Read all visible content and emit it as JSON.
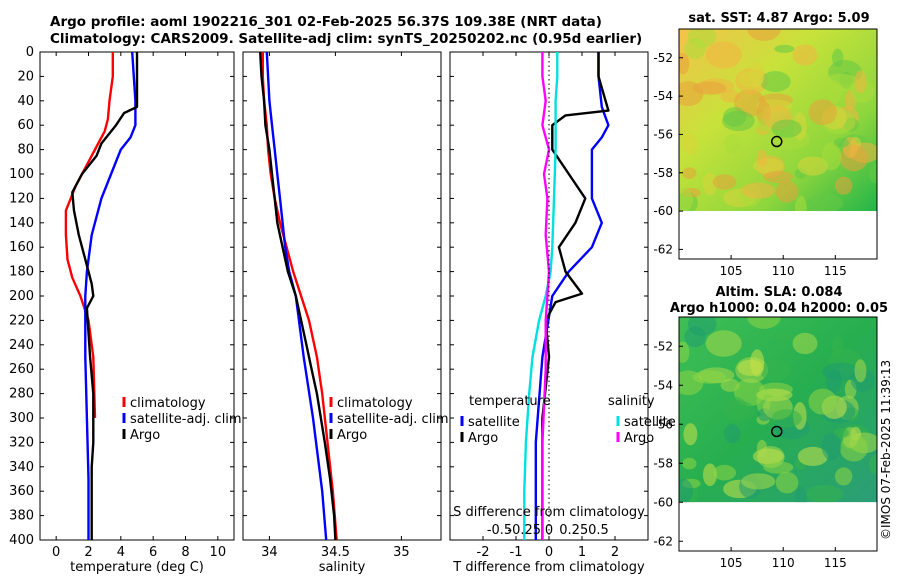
{
  "titles": {
    "line1": "Argo profile: aoml 1902216_301 02-Feb-2025 56.37S 109.38E (NRT data)",
    "line2": "Climatology: CARS2009. Satellite-adj clim: synTS_20250202.nc (0.95d earlier)"
  },
  "chart_data": [
    {
      "type": "line",
      "id": "temperature",
      "xlabel": "temperature (deg C)",
      "ylabel": "",
      "xlim": [
        -1,
        11
      ],
      "ylim": [
        0,
        400
      ],
      "y_reversed": true,
      "xticks": [
        0,
        2,
        4,
        6,
        8,
        10
      ],
      "yticks": [
        0,
        20,
        40,
        60,
        80,
        100,
        120,
        140,
        160,
        180,
        200,
        220,
        240,
        260,
        280,
        300,
        320,
        340,
        360,
        380,
        400
      ],
      "legend": [
        "climatology",
        "satellite-adj. clim",
        "Argo"
      ],
      "legend_position": "lower-right",
      "series": [
        {
          "name": "climatology",
          "color": "#ff0000",
          "x": [
            3.5,
            3.5,
            3.3,
            3.2,
            3.0,
            2.6,
            2.0,
            1.2,
            0.6,
            0.6,
            0.7,
            1.0,
            1.5,
            2.0,
            2.3,
            2.4
          ],
          "y": [
            0,
            20,
            40,
            55,
            65,
            75,
            90,
            110,
            130,
            150,
            170,
            185,
            200,
            220,
            250,
            300
          ]
        },
        {
          "name": "satellite-adj. clim",
          "color": "#0000ff",
          "x": [
            4.7,
            4.8,
            4.9,
            4.9,
            4.6,
            4.0,
            3.4,
            2.8,
            2.2,
            1.9,
            1.8,
            1.8,
            1.9,
            2.0,
            2.0
          ],
          "y": [
            0,
            20,
            40,
            60,
            70,
            80,
            100,
            120,
            150,
            180,
            200,
            250,
            300,
            350,
            400
          ]
        },
        {
          "name": "Argo",
          "color": "#000000",
          "x": [
            5.0,
            5.0,
            5.0,
            4.2,
            3.7,
            2.8,
            2.5,
            1.6,
            1.0,
            1.1,
            1.4,
            1.8,
            2.2,
            2.3,
            1.9,
            2.0,
            2.1,
            2.3,
            2.3,
            2.2,
            2.2,
            2.2
          ],
          "y": [
            0,
            20,
            45,
            50,
            60,
            75,
            85,
            100,
            115,
            130,
            150,
            170,
            190,
            200,
            210,
            230,
            250,
            280,
            320,
            340,
            370,
            400
          ]
        }
      ]
    },
    {
      "type": "line",
      "id": "salinity",
      "xlabel": "salinity",
      "ylabel": "",
      "xlim": [
        33.8,
        35.3
      ],
      "ylim": [
        0,
        400
      ],
      "y_reversed": true,
      "xticks": [
        34,
        34.5,
        35
      ],
      "xtick_labels": [
        "34",
        "34.5",
        "35"
      ],
      "legend": [
        "climatology",
        "satellite-adj. clim",
        "Argo"
      ],
      "legend_position": "lower-right",
      "series": [
        {
          "name": "climatology",
          "color": "#ff0000",
          "x": [
            33.95,
            33.95,
            33.96,
            33.98,
            33.99,
            34.01,
            34.04,
            34.08,
            34.13,
            34.18,
            34.24,
            34.3,
            34.36,
            34.4,
            34.44,
            34.48,
            34.51
          ],
          "y": [
            0,
            20,
            40,
            60,
            80,
            100,
            120,
            140,
            160,
            180,
            200,
            220,
            250,
            280,
            320,
            360,
            400
          ]
        },
        {
          "name": "satellite-adj. clim",
          "color": "#0000ff",
          "x": [
            33.98,
            33.99,
            34.0,
            34.02,
            34.04,
            34.06,
            34.08,
            34.1,
            34.12,
            34.15,
            34.2,
            34.26,
            34.33,
            34.4,
            34.43
          ],
          "y": [
            0,
            20,
            40,
            60,
            80,
            100,
            120,
            140,
            160,
            180,
            200,
            250,
            300,
            360,
            400
          ]
        },
        {
          "name": "Argo",
          "color": "#000000",
          "x": [
            33.93,
            33.94,
            33.96,
            33.97,
            34.0,
            34.02,
            34.04,
            34.06,
            34.1,
            34.14,
            34.2,
            34.24,
            34.28,
            34.32,
            34.36,
            34.42,
            34.46,
            34.49,
            34.5
          ],
          "y": [
            0,
            20,
            40,
            60,
            80,
            100,
            120,
            140,
            160,
            180,
            200,
            220,
            240,
            260,
            280,
            320,
            350,
            380,
            400
          ]
        }
      ]
    },
    {
      "type": "line",
      "id": "difference",
      "xlabel": "T difference from climatology",
      "xlabel_top": "S difference from climatology",
      "xlim": [
        -3,
        3
      ],
      "ylim": [
        0,
        400
      ],
      "y_reversed": true,
      "xticks": [
        -2,
        -1,
        0,
        1,
        2
      ],
      "top_ticks": [
        -0.5,
        -0.25,
        0,
        0.25,
        0.5
      ],
      "top_tick_labels": [
        "-0.5",
        "-0.25",
        "0",
        "0.25",
        "0.5"
      ],
      "legend_groups": [
        {
          "title": "temperature",
          "entries": [
            "satellite",
            "Argo"
          ]
        },
        {
          "title": "salinity",
          "entries": [
            "satellite",
            "Argo"
          ]
        }
      ],
      "series": [
        {
          "name": "temperature satellite",
          "color": "#0000ff",
          "x": [
            1.5,
            1.5,
            1.6,
            1.8,
            1.6,
            1.3,
            1.3,
            1.3,
            1.6,
            1.3,
            0.6,
            0.1,
            -0.2,
            -0.4,
            -0.4
          ],
          "y": [
            0,
            20,
            45,
            60,
            70,
            80,
            100,
            120,
            140,
            160,
            180,
            200,
            250,
            320,
            400
          ]
        },
        {
          "name": "temperature Argo",
          "color": "#000000",
          "x": [
            1.5,
            1.5,
            1.8,
            0.5,
            0.1,
            0.1,
            0.6,
            1.1,
            0.8,
            0.3,
            0.5,
            1.0,
            0.2,
            -0.1,
            0.0,
            -0.2,
            -0.2,
            -0.2
          ],
          "y": [
            0,
            20,
            48,
            52,
            60,
            80,
            100,
            120,
            140,
            160,
            180,
            198,
            205,
            220,
            250,
            300,
            350,
            400
          ]
        },
        {
          "name": "salinity satellite",
          "color": "#00e0e0",
          "x": [
            0.25,
            0.25,
            0.2,
            0.2,
            0.15,
            0.1,
            0.05,
            -0.1,
            -0.3,
            -0.5,
            -0.6,
            -0.7,
            -0.75,
            -0.75
          ],
          "y": [
            0,
            20,
            40,
            80,
            120,
            160,
            180,
            200,
            220,
            250,
            280,
            320,
            360,
            400
          ]
        },
        {
          "name": "salinity Argo",
          "color": "#ff00ff",
          "x": [
            -0.2,
            -0.2,
            -0.1,
            -0.2,
            0.0,
            -0.15,
            -0.05,
            -0.1,
            0.0,
            -0.05,
            -0.1,
            -0.1,
            -0.2,
            -0.2
          ],
          "y": [
            0,
            20,
            40,
            60,
            80,
            100,
            120,
            150,
            180,
            200,
            220,
            260,
            320,
            400
          ]
        }
      ]
    },
    {
      "type": "heatmap",
      "id": "sst-map",
      "title": "sat. SST: 4.87 Argo: 5.09",
      "xlim": [
        100,
        119
      ],
      "ylim": [
        -62.5,
        -50.5
      ],
      "xticks": [
        105,
        110,
        115
      ],
      "yticks": [
        -52,
        -54,
        -56,
        -58,
        -60,
        -62
      ],
      "argo_position": [
        109.38,
        -56.37
      ]
    },
    {
      "type": "heatmap",
      "id": "sla-map",
      "title_line1": "Altim. SLA: 0.084",
      "title_line2": "Argo h1000: 0.04 h2000: 0.05",
      "xlim": [
        100,
        119
      ],
      "ylim": [
        -62.5,
        -50.5
      ],
      "xticks": [
        105,
        110,
        115
      ],
      "yticks": [
        -52,
        -54,
        -56,
        -58,
        -60,
        -62
      ],
      "argo_position": [
        109.38,
        -56.37
      ]
    }
  ],
  "credit": "©IMOS 07-Feb-2025 11:39:13"
}
